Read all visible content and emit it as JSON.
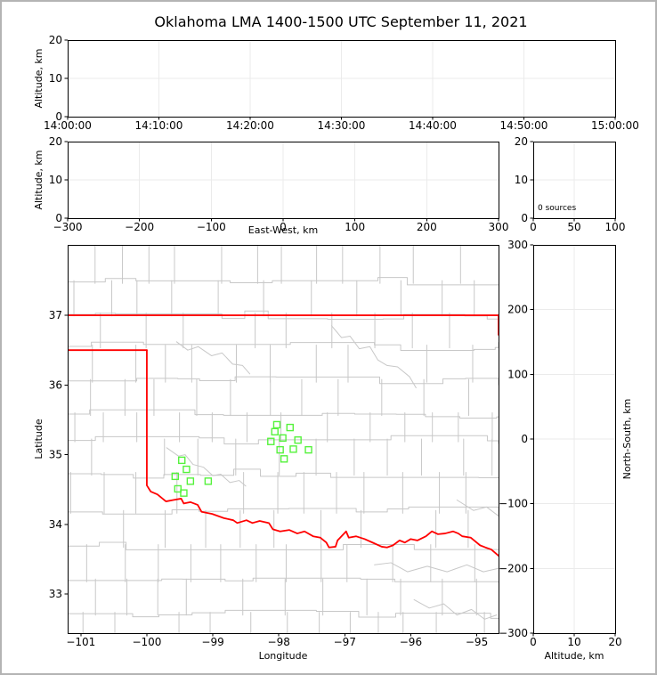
{
  "title": "Oklahoma LMA 1400-1500 UTC September 11, 2021",
  "colors": {
    "background": "#ffffff",
    "outer_border": "#b4b4b4",
    "axis_frame": "#000000",
    "grid": "#ebebeb",
    "county_line": "#c8c8c8",
    "state_border": "#ff0000",
    "source_marker": "#55f23c"
  },
  "chart_data": [
    {
      "id": "altitude-vs-time",
      "type": "scatter",
      "xlabel": "",
      "ylabel": "Altitude, km",
      "xlim": [
        0,
        3600
      ],
      "ylim": [
        0,
        20
      ],
      "xticks": [
        {
          "v": 0,
          "label": "14:00:00"
        },
        {
          "v": 600,
          "label": "14:10:00"
        },
        {
          "v": 1200,
          "label": "14:20:00"
        },
        {
          "v": 1800,
          "label": "14:30:00"
        },
        {
          "v": 2400,
          "label": "14:40:00"
        },
        {
          "v": 3000,
          "label": "14:50:00"
        },
        {
          "v": 3600,
          "label": "15:00:00"
        }
      ],
      "yticks": [
        0,
        10,
        20
      ],
      "grid_x": [
        600,
        1200,
        1800,
        2400,
        3000
      ],
      "grid_y": [
        10
      ],
      "points": []
    },
    {
      "id": "altitude-vs-east-west",
      "type": "scatter",
      "xlabel": "East-West, km",
      "ylabel": "Altitude, km",
      "xlim": [
        -300,
        300
      ],
      "ylim": [
        0,
        20
      ],
      "xticks": [
        -300,
        -200,
        -100,
        0,
        100,
        200,
        300
      ],
      "yticks": [
        0,
        10,
        20
      ],
      "grid_x": [
        -200,
        -100,
        0,
        100,
        200
      ],
      "grid_y": [
        10
      ],
      "points": []
    },
    {
      "id": "altitude-histogram",
      "type": "line",
      "xlabel": "",
      "ylabel": "",
      "annotation": "0 sources",
      "xlim": [
        0,
        100
      ],
      "ylim": [
        0,
        20
      ],
      "xticks": [
        0,
        50,
        100
      ],
      "yticks": [
        0,
        10,
        20
      ],
      "grid_x": [
        50
      ],
      "grid_y": [
        10
      ],
      "points": []
    },
    {
      "id": "plan-view-map",
      "type": "scatter",
      "xlabel": "Longitude",
      "ylabel": "Latitude",
      "xlim": [
        -101.2,
        -94.67
      ],
      "ylim": [
        32.44,
        38.01
      ],
      "xticks": [
        -101,
        -100,
        -99,
        -98,
        -97,
        -96,
        -95
      ],
      "yticks": [
        33,
        34,
        35,
        36,
        37
      ],
      "marker": {
        "shape": "open-square",
        "size": 7
      },
      "points": [
        [
          -98.03,
          35.43
        ],
        [
          -97.83,
          35.39
        ],
        [
          -98.06,
          35.33
        ],
        [
          -97.94,
          35.24
        ],
        [
          -98.12,
          35.19
        ],
        [
          -97.71,
          35.21
        ],
        [
          -97.98,
          35.07
        ],
        [
          -97.78,
          35.08
        ],
        [
          -97.55,
          35.07
        ],
        [
          -97.92,
          34.94
        ],
        [
          -99.47,
          34.92
        ],
        [
          -99.4,
          34.79
        ],
        [
          -99.57,
          34.69
        ],
        [
          -99.34,
          34.62
        ],
        [
          -99.07,
          34.62
        ],
        [
          -99.53,
          34.51
        ],
        [
          -99.44,
          34.45
        ]
      ],
      "state_border": [
        [
          [
            -101.2,
            37.0
          ],
          [
            -94.67,
            37.0
          ]
        ],
        [
          [
            -94.67,
            37.0
          ],
          [
            -94.67,
            36.72
          ]
        ],
        [
          [
            -101.2,
            36.5
          ],
          [
            -100.0,
            36.5
          ]
        ],
        [
          [
            -100.0,
            36.5
          ],
          [
            -100.0,
            34.56
          ],
          [
            -99.94,
            34.47
          ],
          [
            -99.84,
            34.43
          ],
          [
            -99.71,
            34.33
          ],
          [
            -99.6,
            34.35
          ],
          [
            -99.48,
            34.37
          ],
          [
            -99.44,
            34.3
          ],
          [
            -99.34,
            34.32
          ],
          [
            -99.23,
            34.28
          ],
          [
            -99.17,
            34.18
          ],
          [
            -99.01,
            34.15
          ],
          [
            -98.83,
            34.09
          ],
          [
            -98.69,
            34.06
          ],
          [
            -98.63,
            34.02
          ],
          [
            -98.49,
            34.06
          ],
          [
            -98.4,
            34.02
          ],
          [
            -98.29,
            34.05
          ],
          [
            -98.15,
            34.02
          ],
          [
            -98.09,
            33.93
          ],
          [
            -97.98,
            33.9
          ],
          [
            -97.84,
            33.92
          ],
          [
            -97.72,
            33.87
          ],
          [
            -97.61,
            33.9
          ],
          [
            -97.48,
            33.83
          ],
          [
            -97.37,
            33.81
          ],
          [
            -97.28,
            33.74
          ],
          [
            -97.24,
            33.67
          ],
          [
            -97.14,
            33.68
          ],
          [
            -97.11,
            33.77
          ],
          [
            -96.98,
            33.9
          ],
          [
            -96.94,
            33.81
          ],
          [
            -96.83,
            33.83
          ],
          [
            -96.7,
            33.79
          ],
          [
            -96.58,
            33.74
          ],
          [
            -96.44,
            33.68
          ],
          [
            -96.36,
            33.67
          ],
          [
            -96.27,
            33.7
          ],
          [
            -96.17,
            33.77
          ],
          [
            -96.09,
            33.74
          ],
          [
            -96.0,
            33.79
          ],
          [
            -95.9,
            33.77
          ],
          [
            -95.77,
            33.83
          ],
          [
            -95.68,
            33.9
          ],
          [
            -95.59,
            33.86
          ],
          [
            -95.48,
            33.87
          ],
          [
            -95.36,
            33.9
          ],
          [
            -95.28,
            33.87
          ],
          [
            -95.22,
            33.83
          ],
          [
            -95.09,
            33.81
          ],
          [
            -94.95,
            33.7
          ],
          [
            -94.87,
            33.67
          ],
          [
            -94.78,
            33.64
          ],
          [
            -94.67,
            33.55
          ]
        ]
      ],
      "rivers": [
        [
          [
            -99.55,
            36.62
          ],
          [
            -99.38,
            36.5
          ],
          [
            -99.22,
            36.55
          ],
          [
            -99.02,
            36.42
          ],
          [
            -98.86,
            36.46
          ],
          [
            -98.7,
            36.3
          ],
          [
            -98.55,
            36.28
          ],
          [
            -98.44,
            36.16
          ]
        ],
        [
          [
            -97.2,
            36.85
          ],
          [
            -97.05,
            36.68
          ],
          [
            -96.92,
            36.7
          ],
          [
            -96.78,
            36.52
          ],
          [
            -96.62,
            36.55
          ],
          [
            -96.5,
            36.36
          ],
          [
            -96.36,
            36.28
          ],
          [
            -96.2,
            36.26
          ],
          [
            -96.02,
            36.12
          ],
          [
            -95.92,
            35.96
          ]
        ],
        [
          [
            -99.7,
            35.1
          ],
          [
            -99.52,
            34.98
          ],
          [
            -99.42,
            35.0
          ],
          [
            -99.3,
            34.86
          ],
          [
            -99.14,
            34.82
          ],
          [
            -99.0,
            34.7
          ],
          [
            -98.88,
            34.72
          ],
          [
            -98.74,
            34.6
          ],
          [
            -98.6,
            34.63
          ],
          [
            -98.5,
            34.55
          ]
        ],
        [
          [
            -96.55,
            33.42
          ],
          [
            -96.3,
            33.45
          ],
          [
            -96.05,
            33.32
          ],
          [
            -95.75,
            33.4
          ],
          [
            -95.45,
            33.32
          ],
          [
            -95.15,
            33.42
          ],
          [
            -94.9,
            33.32
          ],
          [
            -94.67,
            33.37
          ]
        ],
        [
          [
            -95.95,
            32.92
          ],
          [
            -95.72,
            32.8
          ],
          [
            -95.5,
            32.86
          ],
          [
            -95.3,
            32.7
          ],
          [
            -95.08,
            32.78
          ],
          [
            -94.88,
            32.64
          ],
          [
            -94.7,
            32.7
          ]
        ],
        [
          [
            -95.3,
            34.35
          ],
          [
            -95.05,
            34.2
          ],
          [
            -94.85,
            34.25
          ],
          [
            -94.67,
            34.12
          ]
        ]
      ],
      "county_seed": 11
    },
    {
      "id": "north-south-vs-altitude",
      "type": "scatter",
      "xlabel": "Altitude, km",
      "ylabel": "North-South, km",
      "xlim": [
        0,
        20
      ],
      "ylim": [
        -300,
        300
      ],
      "xticks": [
        0,
        10,
        20
      ],
      "yticks": [
        -300,
        -200,
        -100,
        0,
        100,
        200,
        300
      ],
      "grid_x": [
        10
      ],
      "grid_y": [
        -200,
        -100,
        0,
        100,
        200
      ],
      "points": []
    }
  ]
}
